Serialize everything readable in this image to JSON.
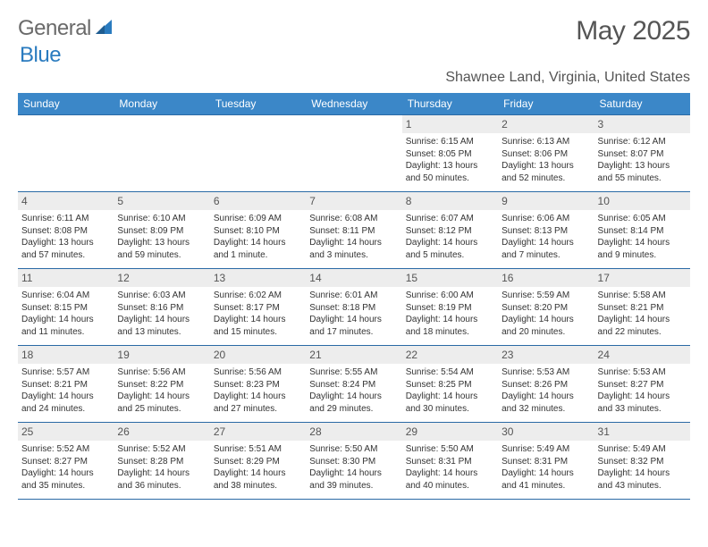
{
  "logo": {
    "text1": "General",
    "text2": "Blue"
  },
  "title": "May 2025",
  "location": "Shawnee Land, Virginia, United States",
  "colors": {
    "header_bg": "#3b87c8",
    "header_text": "#ffffff",
    "rule": "#2a6aa5",
    "daynum_bg": "#ededed",
    "text": "#333333",
    "title_text": "#555555",
    "logo_gray": "#6a6a6a",
    "logo_blue": "#2a7bbf",
    "background": "#ffffff"
  },
  "typography": {
    "title_fontsize": 30,
    "location_fontsize": 16,
    "th_fontsize": 12,
    "daynum_fontsize": 12,
    "cell_fontsize": 10
  },
  "weekdays": [
    "Sunday",
    "Monday",
    "Tuesday",
    "Wednesday",
    "Thursday",
    "Friday",
    "Saturday"
  ],
  "type": "table",
  "columns": 7,
  "rows": 5,
  "cells": [
    [
      null,
      null,
      null,
      null,
      {
        "day": "1",
        "sunrise": "6:15 AM",
        "sunset": "8:05 PM",
        "daylight": "13 hours and 50 minutes."
      },
      {
        "day": "2",
        "sunrise": "6:13 AM",
        "sunset": "8:06 PM",
        "daylight": "13 hours and 52 minutes."
      },
      {
        "day": "3",
        "sunrise": "6:12 AM",
        "sunset": "8:07 PM",
        "daylight": "13 hours and 55 minutes."
      }
    ],
    [
      {
        "day": "4",
        "sunrise": "6:11 AM",
        "sunset": "8:08 PM",
        "daylight": "13 hours and 57 minutes."
      },
      {
        "day": "5",
        "sunrise": "6:10 AM",
        "sunset": "8:09 PM",
        "daylight": "13 hours and 59 minutes."
      },
      {
        "day": "6",
        "sunrise": "6:09 AM",
        "sunset": "8:10 PM",
        "daylight": "14 hours and 1 minute."
      },
      {
        "day": "7",
        "sunrise": "6:08 AM",
        "sunset": "8:11 PM",
        "daylight": "14 hours and 3 minutes."
      },
      {
        "day": "8",
        "sunrise": "6:07 AM",
        "sunset": "8:12 PM",
        "daylight": "14 hours and 5 minutes."
      },
      {
        "day": "9",
        "sunrise": "6:06 AM",
        "sunset": "8:13 PM",
        "daylight": "14 hours and 7 minutes."
      },
      {
        "day": "10",
        "sunrise": "6:05 AM",
        "sunset": "8:14 PM",
        "daylight": "14 hours and 9 minutes."
      }
    ],
    [
      {
        "day": "11",
        "sunrise": "6:04 AM",
        "sunset": "8:15 PM",
        "daylight": "14 hours and 11 minutes."
      },
      {
        "day": "12",
        "sunrise": "6:03 AM",
        "sunset": "8:16 PM",
        "daylight": "14 hours and 13 minutes."
      },
      {
        "day": "13",
        "sunrise": "6:02 AM",
        "sunset": "8:17 PM",
        "daylight": "14 hours and 15 minutes."
      },
      {
        "day": "14",
        "sunrise": "6:01 AM",
        "sunset": "8:18 PM",
        "daylight": "14 hours and 17 minutes."
      },
      {
        "day": "15",
        "sunrise": "6:00 AM",
        "sunset": "8:19 PM",
        "daylight": "14 hours and 18 minutes."
      },
      {
        "day": "16",
        "sunrise": "5:59 AM",
        "sunset": "8:20 PM",
        "daylight": "14 hours and 20 minutes."
      },
      {
        "day": "17",
        "sunrise": "5:58 AM",
        "sunset": "8:21 PM",
        "daylight": "14 hours and 22 minutes."
      }
    ],
    [
      {
        "day": "18",
        "sunrise": "5:57 AM",
        "sunset": "8:21 PM",
        "daylight": "14 hours and 24 minutes."
      },
      {
        "day": "19",
        "sunrise": "5:56 AM",
        "sunset": "8:22 PM",
        "daylight": "14 hours and 25 minutes."
      },
      {
        "day": "20",
        "sunrise": "5:56 AM",
        "sunset": "8:23 PM",
        "daylight": "14 hours and 27 minutes."
      },
      {
        "day": "21",
        "sunrise": "5:55 AM",
        "sunset": "8:24 PM",
        "daylight": "14 hours and 29 minutes."
      },
      {
        "day": "22",
        "sunrise": "5:54 AM",
        "sunset": "8:25 PM",
        "daylight": "14 hours and 30 minutes."
      },
      {
        "day": "23",
        "sunrise": "5:53 AM",
        "sunset": "8:26 PM",
        "daylight": "14 hours and 32 minutes."
      },
      {
        "day": "24",
        "sunrise": "5:53 AM",
        "sunset": "8:27 PM",
        "daylight": "14 hours and 33 minutes."
      }
    ],
    [
      {
        "day": "25",
        "sunrise": "5:52 AM",
        "sunset": "8:27 PM",
        "daylight": "14 hours and 35 minutes."
      },
      {
        "day": "26",
        "sunrise": "5:52 AM",
        "sunset": "8:28 PM",
        "daylight": "14 hours and 36 minutes."
      },
      {
        "day": "27",
        "sunrise": "5:51 AM",
        "sunset": "8:29 PM",
        "daylight": "14 hours and 38 minutes."
      },
      {
        "day": "28",
        "sunrise": "5:50 AM",
        "sunset": "8:30 PM",
        "daylight": "14 hours and 39 minutes."
      },
      {
        "day": "29",
        "sunrise": "5:50 AM",
        "sunset": "8:31 PM",
        "daylight": "14 hours and 40 minutes."
      },
      {
        "day": "30",
        "sunrise": "5:49 AM",
        "sunset": "8:31 PM",
        "daylight": "14 hours and 41 minutes."
      },
      {
        "day": "31",
        "sunrise": "5:49 AM",
        "sunset": "8:32 PM",
        "daylight": "14 hours and 43 minutes."
      }
    ]
  ],
  "labels": {
    "sunrise": "Sunrise: ",
    "sunset": "Sunset: ",
    "daylight": "Daylight: "
  }
}
